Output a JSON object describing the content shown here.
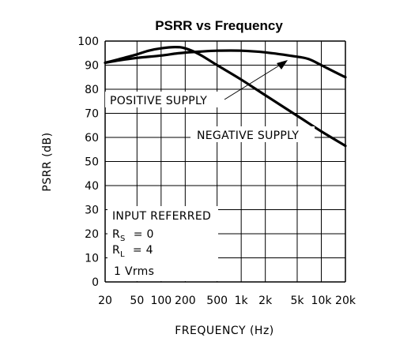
{
  "chart_data": {
    "type": "line",
    "title": "PSRR vs Frequency",
    "xlabel": "FREQUENCY (Hz)",
    "ylabel": "PSRR (dB)",
    "xscale": "log",
    "xlim": [
      20,
      20000
    ],
    "ylim": [
      0,
      100
    ],
    "grid": true,
    "x_ticks": [
      {
        "value": 20,
        "label": "20"
      },
      {
        "value": 50,
        "label": "50"
      },
      {
        "value": 100,
        "label": "100"
      },
      {
        "value": 200,
        "label": "200"
      },
      {
        "value": 500,
        "label": "500"
      },
      {
        "value": 1000,
        "label": "1k"
      },
      {
        "value": 2000,
        "label": "2k"
      },
      {
        "value": 5000,
        "label": "5k"
      },
      {
        "value": 10000,
        "label": "10k"
      },
      {
        "value": 20000,
        "label": "20k"
      }
    ],
    "y_ticks": [
      0,
      10,
      20,
      30,
      40,
      50,
      60,
      70,
      80,
      90,
      100
    ],
    "series": [
      {
        "name": "POSITIVE SUPPLY",
        "x": [
          20,
          30,
          50,
          100,
          150,
          200,
          300,
          500,
          1000,
          2000,
          5000,
          7000,
          10000,
          15000,
          20000
        ],
        "y": [
          91,
          92,
          93,
          94,
          94.8,
          95.2,
          95.6,
          96,
          96,
          95.3,
          93.5,
          92.5,
          90,
          87,
          85
        ]
      },
      {
        "name": "NEGATIVE SUPPLY",
        "x": [
          20,
          30,
          50,
          70,
          100,
          150,
          200,
          300,
          500,
          1000,
          2000,
          5000,
          10000,
          20000
        ],
        "y": [
          91,
          92.5,
          94.5,
          96,
          97,
          97.5,
          97,
          94.5,
          90,
          84,
          77.5,
          69,
          62.5,
          56.5
        ]
      }
    ],
    "annotations": {
      "positive_supply": "POSITIVE SUPPLY",
      "negative_supply": "NEGATIVE SUPPLY",
      "input_referred": "INPUT REFERRED",
      "rs_symbol": "R",
      "rs_sub": "S",
      "rs_value": "= 0",
      "rl_symbol": "R",
      "rl_sub": "L",
      "rl_value": "= 4",
      "vrms": "1 Vrms"
    }
  }
}
